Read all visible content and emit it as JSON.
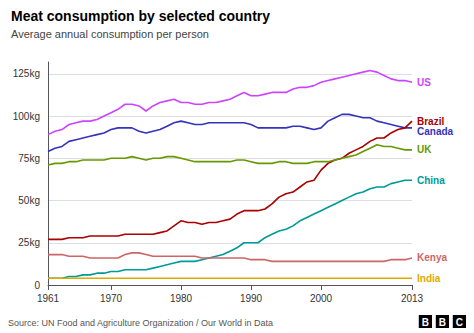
{
  "chart_data": {
    "type": "line",
    "title": "Meat consumption by selected country",
    "subtitle": "Average annual consumption per person",
    "source": "Source: UN Food and Agriculture Organization / Our World in Data",
    "annotations": [
      "B",
      "B",
      "C"
    ],
    "x": [
      1961,
      1962,
      1963,
      1964,
      1965,
      1966,
      1967,
      1968,
      1969,
      1970,
      1971,
      1972,
      1973,
      1974,
      1975,
      1976,
      1977,
      1978,
      1979,
      1980,
      1981,
      1982,
      1983,
      1984,
      1985,
      1986,
      1987,
      1988,
      1989,
      1990,
      1991,
      1992,
      1993,
      1994,
      1995,
      1996,
      1997,
      1998,
      1999,
      2000,
      2001,
      2002,
      2003,
      2004,
      2005,
      2006,
      2007,
      2008,
      2009,
      2010,
      2011,
      2012,
      2013
    ],
    "series": [
      {
        "name": "US",
        "color": "#cc44ff",
        "values": [
          89,
          91,
          92,
          95,
          96,
          97,
          97,
          98,
          100,
          102,
          104,
          107,
          107,
          106,
          103,
          106,
          108,
          109,
          110,
          108,
          108,
          107,
          107,
          108,
          108,
          109,
          110,
          112,
          114,
          112,
          112,
          113,
          114,
          114,
          114,
          116,
          117,
          117,
          118,
          120,
          121,
          122,
          123,
          124,
          125,
          126,
          127,
          126,
          124,
          122,
          121,
          121,
          120
        ]
      },
      {
        "name": "Canada",
        "color": "#3333bb",
        "values": [
          79,
          81,
          82,
          85,
          86,
          87,
          88,
          89,
          90,
          92,
          93,
          93,
          93,
          91,
          90,
          91,
          92,
          94,
          96,
          97,
          96,
          95,
          95,
          96,
          96,
          96,
          96,
          96,
          96,
          95,
          93,
          93,
          93,
          93,
          93,
          94,
          94,
          93,
          92,
          93,
          97,
          99,
          101,
          101,
          100,
          99,
          99,
          97,
          96,
          95,
          94,
          93,
          93
        ]
      },
      {
        "name": "Brazil",
        "color": "#aa0000",
        "values": [
          27,
          27,
          27,
          28,
          28,
          28,
          29,
          29,
          29,
          29,
          29,
          30,
          30,
          30,
          30,
          30,
          31,
          32,
          35,
          38,
          37,
          37,
          36,
          37,
          37,
          38,
          39,
          42,
          44,
          44,
          44,
          45,
          48,
          52,
          54,
          55,
          58,
          61,
          62,
          68,
          72,
          74,
          75,
          78,
          80,
          82,
          85,
          87,
          87,
          90,
          92,
          93,
          97
        ]
      },
      {
        "name": "UK",
        "color": "#669900",
        "values": [
          71,
          72,
          72,
          73,
          73,
          74,
          74,
          74,
          74,
          75,
          75,
          75,
          76,
          75,
          74,
          75,
          75,
          76,
          76,
          75,
          74,
          73,
          73,
          73,
          73,
          73,
          73,
          74,
          74,
          73,
          72,
          72,
          72,
          73,
          73,
          72,
          72,
          72,
          73,
          73,
          73,
          74,
          75,
          76,
          77,
          79,
          81,
          83,
          82,
          82,
          81,
          80,
          80
        ]
      },
      {
        "name": "China",
        "color": "#009999",
        "values": [
          4,
          4,
          4,
          5,
          5,
          6,
          6,
          7,
          7,
          8,
          8,
          9,
          9,
          9,
          9,
          10,
          11,
          12,
          13,
          14,
          14,
          14,
          15,
          16,
          17,
          18,
          20,
          22,
          25,
          25,
          25,
          28,
          30,
          32,
          33,
          35,
          38,
          40,
          42,
          44,
          46,
          48,
          50,
          52,
          54,
          55,
          57,
          58,
          58,
          60,
          61,
          62,
          62
        ]
      },
      {
        "name": "Kenya",
        "color": "#cc6666",
        "values": [
          18,
          18,
          18,
          17,
          17,
          17,
          16,
          16,
          16,
          16,
          16,
          18,
          19,
          19,
          18,
          17,
          17,
          17,
          17,
          17,
          17,
          17,
          16,
          16,
          16,
          16,
          16,
          16,
          16,
          15,
          15,
          15,
          14,
          14,
          14,
          14,
          14,
          14,
          14,
          14,
          14,
          14,
          14,
          14,
          14,
          14,
          14,
          14,
          14,
          15,
          15,
          15,
          16
        ]
      },
      {
        "name": "India",
        "color": "#ddaa00",
        "values": [
          4,
          4,
          4,
          4,
          4,
          4,
          4,
          4,
          4,
          4,
          4,
          4,
          4,
          4,
          4,
          4,
          4,
          4,
          4,
          4,
          4,
          4,
          4,
          4,
          4,
          4,
          4,
          4,
          4,
          4,
          4,
          4,
          4,
          4,
          4,
          4,
          4,
          4,
          4,
          4,
          4,
          4,
          4,
          4,
          4,
          4,
          4,
          4,
          4,
          4,
          4,
          4,
          4
        ]
      }
    ],
    "xlim": [
      1961,
      2013
    ],
    "xticks": [
      1961,
      1970,
      1980,
      1990,
      2000,
      2013
    ],
    "ylim": [
      0,
      132
    ],
    "yticks": [
      0,
      {
        "value": 25,
        "label": "25kg"
      },
      {
        "value": 50,
        "label": "50kg"
      },
      {
        "value": 75,
        "label": "75kg"
      },
      {
        "value": 100,
        "label": "100kg"
      },
      {
        "value": 125,
        "label": "125kg"
      }
    ],
    "grid": true
  }
}
